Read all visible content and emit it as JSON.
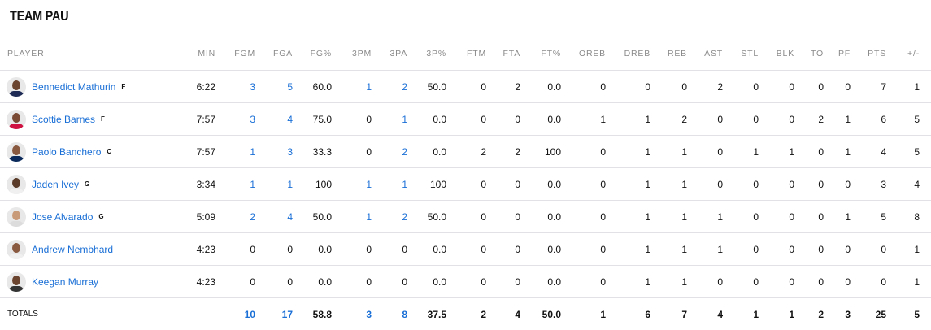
{
  "team_title": "TEAM PAU",
  "columns": [
    "PLAYER",
    "MIN",
    "FGM",
    "FGA",
    "FG%",
    "3PM",
    "3PA",
    "3P%",
    "FTM",
    "FTA",
    "FT%",
    "OREB",
    "DREB",
    "REB",
    "AST",
    "STL",
    "BLK",
    "TO",
    "PF",
    "PTS",
    "+/-"
  ],
  "players": [
    {
      "name": "Bennedict Mathurin",
      "pos": "F",
      "skin": "#6b4530",
      "jersey": "#1d2b55",
      "stats": [
        "6:22",
        "3",
        "5",
        "60.0",
        "1",
        "2",
        "50.0",
        "0",
        "2",
        "0.0",
        "0",
        "0",
        "0",
        "2",
        "0",
        "0",
        "0",
        "0",
        "7",
        "1"
      ]
    },
    {
      "name": "Scottie Barnes",
      "pos": "F",
      "skin": "#7a4a35",
      "jersey": "#ce1141",
      "stats": [
        "7:57",
        "3",
        "4",
        "75.0",
        "0",
        "1",
        "0.0",
        "0",
        "0",
        "0.0",
        "1",
        "1",
        "2",
        "0",
        "0",
        "0",
        "2",
        "1",
        "6",
        "5"
      ]
    },
    {
      "name": "Paolo Banchero",
      "pos": "C",
      "skin": "#8a5a40",
      "jersey": "#0b2a5b",
      "stats": [
        "7:57",
        "1",
        "3",
        "33.3",
        "0",
        "2",
        "0.0",
        "2",
        "2",
        "100",
        "0",
        "1",
        "1",
        "0",
        "1",
        "1",
        "0",
        "1",
        "4",
        "5"
      ]
    },
    {
      "name": "Jaden Ivey",
      "pos": "G",
      "skin": "#5a3a28",
      "jersey": "#f0f0f0",
      "stats": [
        "3:34",
        "1",
        "1",
        "100",
        "1",
        "1",
        "100",
        "0",
        "0",
        "0.0",
        "0",
        "1",
        "1",
        "0",
        "0",
        "0",
        "0",
        "0",
        "3",
        "4"
      ]
    },
    {
      "name": "Jose Alvarado",
      "pos": "G",
      "skin": "#c89a78",
      "jersey": "#dcdcdc",
      "stats": [
        "5:09",
        "2",
        "4",
        "50.0",
        "1",
        "2",
        "50.0",
        "0",
        "0",
        "0.0",
        "0",
        "1",
        "1",
        "1",
        "0",
        "0",
        "0",
        "1",
        "5",
        "8"
      ]
    },
    {
      "name": "Andrew Nembhard",
      "pos": "",
      "skin": "#8a5a40",
      "jersey": "#f0f0f0",
      "stats": [
        "4:23",
        "0",
        "0",
        "0.0",
        "0",
        "0",
        "0.0",
        "0",
        "0",
        "0.0",
        "0",
        "1",
        "1",
        "1",
        "0",
        "0",
        "0",
        "0",
        "0",
        "1"
      ]
    },
    {
      "name": "Keegan Murray",
      "pos": "",
      "skin": "#6b4530",
      "jersey": "#333333",
      "stats": [
        "4:23",
        "0",
        "0",
        "0.0",
        "0",
        "0",
        "0.0",
        "0",
        "0",
        "0.0",
        "0",
        "1",
        "1",
        "0",
        "0",
        "0",
        "0",
        "0",
        "0",
        "1"
      ]
    }
  ],
  "totals": {
    "label": "TOTALS",
    "stats": [
      "",
      "10",
      "17",
      "58.8",
      "3",
      "8",
      "37.5",
      "2",
      "4",
      "50.0",
      "1",
      "6",
      "7",
      "4",
      "1",
      "1",
      "2",
      "3",
      "25",
      "5"
    ]
  },
  "colors": {
    "link": "#1a6fd6",
    "header": "#8a8a8a",
    "border": "#e2e2e6"
  }
}
